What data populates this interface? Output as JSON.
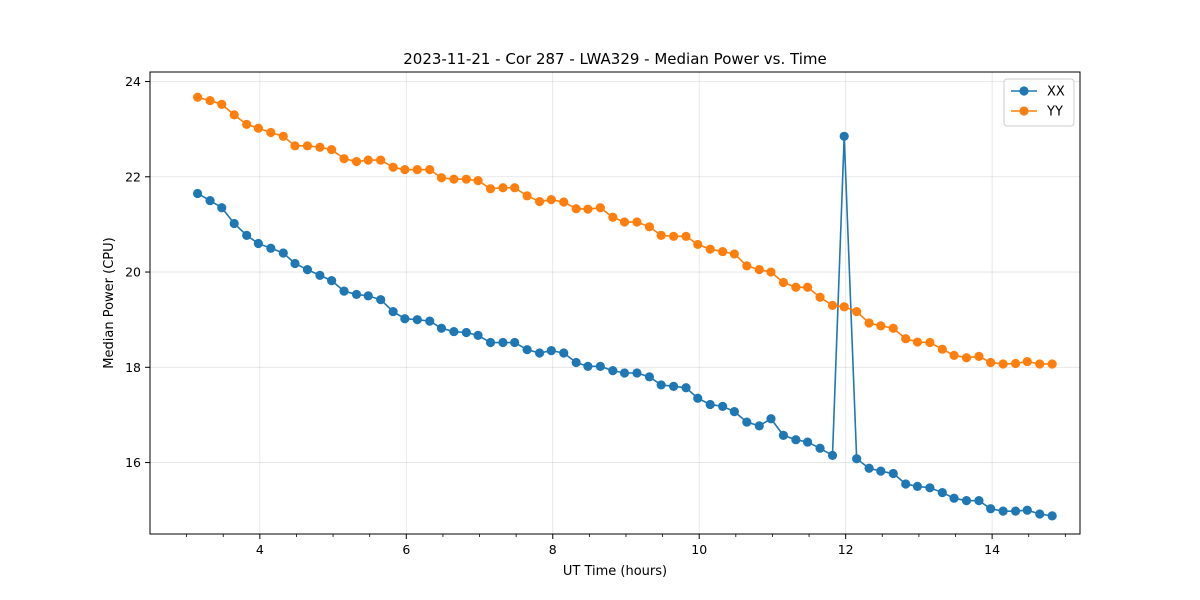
{
  "chart_data": {
    "type": "line",
    "title": "2023-11-21 - Cor 287 - LWA329 - Median Power vs. Time",
    "xlabel": "UT Time (hours)",
    "ylabel": "Median Power (CPU)",
    "xlim": [
      2.5,
      15.2
    ],
    "ylim": [
      14.5,
      24.2
    ],
    "xticks": [
      4,
      6,
      8,
      10,
      12,
      14
    ],
    "yticks": [
      16,
      18,
      20,
      22,
      24
    ],
    "grid": true,
    "legend_position": "top-right",
    "x": [
      3.15,
      3.32,
      3.48,
      3.65,
      3.82,
      3.98,
      4.15,
      4.32,
      4.48,
      4.65,
      4.82,
      4.98,
      5.15,
      5.32,
      5.48,
      5.65,
      5.82,
      5.98,
      6.15,
      6.32,
      6.48,
      6.65,
      6.82,
      6.98,
      7.15,
      7.32,
      7.48,
      7.65,
      7.82,
      7.98,
      8.15,
      8.32,
      8.48,
      8.65,
      8.82,
      8.98,
      9.15,
      9.32,
      9.48,
      9.65,
      9.82,
      9.98,
      10.15,
      10.32,
      10.48,
      10.65,
      10.82,
      10.98,
      11.15,
      11.32,
      11.48,
      11.65,
      11.82,
      11.98,
      12.15,
      12.32,
      12.48,
      12.65,
      12.82,
      12.98,
      13.15,
      13.32,
      13.48,
      13.65,
      13.82,
      13.98,
      14.15,
      14.32,
      14.48,
      14.65,
      14.82
    ],
    "series": [
      {
        "name": "XX",
        "color": "#1f77b4",
        "values": [
          21.65,
          21.5,
          21.35,
          21.02,
          20.77,
          20.6,
          20.5,
          20.4,
          20.18,
          20.05,
          19.93,
          19.82,
          19.6,
          19.53,
          19.5,
          19.42,
          19.17,
          19.02,
          19.0,
          18.97,
          18.82,
          18.75,
          18.73,
          18.67,
          18.52,
          18.52,
          18.52,
          18.37,
          18.3,
          18.35,
          18.3,
          18.1,
          18.02,
          18.02,
          17.93,
          17.88,
          17.88,
          17.8,
          17.63,
          17.6,
          17.57,
          17.35,
          17.22,
          17.18,
          17.07,
          16.85,
          16.77,
          16.92,
          16.57,
          16.48,
          16.43,
          16.3,
          16.15,
          22.85,
          16.08,
          15.88,
          15.82,
          15.77,
          15.55,
          15.5,
          15.47,
          15.37,
          15.25,
          15.2,
          15.2,
          15.03,
          14.98,
          14.98,
          15.0,
          14.92,
          14.88
        ]
      },
      {
        "name": "YY",
        "color": "#ff7f0e",
        "values": [
          23.67,
          23.6,
          23.52,
          23.3,
          23.1,
          23.02,
          22.93,
          22.85,
          22.65,
          22.65,
          22.62,
          22.57,
          22.38,
          22.32,
          22.35,
          22.35,
          22.2,
          22.15,
          22.15,
          22.15,
          21.98,
          21.95,
          21.95,
          21.92,
          21.75,
          21.77,
          21.77,
          21.6,
          21.48,
          21.52,
          21.47,
          21.33,
          21.32,
          21.35,
          21.15,
          21.05,
          21.05,
          20.95,
          20.77,
          20.75,
          20.75,
          20.58,
          20.48,
          20.43,
          20.38,
          20.13,
          20.05,
          20.0,
          19.78,
          19.68,
          19.68,
          19.47,
          19.3,
          19.27,
          19.17,
          18.93,
          18.87,
          18.82,
          18.6,
          18.53,
          18.52,
          18.38,
          18.25,
          18.2,
          18.23,
          18.1,
          18.07,
          18.08,
          18.12,
          18.07,
          18.07
        ]
      }
    ]
  }
}
